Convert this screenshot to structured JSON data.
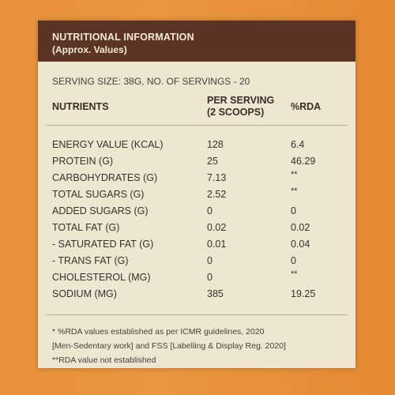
{
  "header": {
    "title": "NUTRITIONAL INFORMATION",
    "subtitle": "(Approx. Values)"
  },
  "serving_info": "SERVING SIZE: 38G, NO. OF SERVINGS - 20",
  "columns": {
    "nutrients": "NUTRIENTS",
    "per_serving_line1": "PER SERVING",
    "per_serving_line2": "(2 SCOOPS)",
    "rda": "%RDA"
  },
  "rows": [
    {
      "name": "ENERGY VALUE (KCAL)",
      "per_serving": "128",
      "rda": "6.4"
    },
    {
      "name": "PROTEIN (G)",
      "per_serving": "25",
      "rda": "46.29"
    },
    {
      "name": "CARBOHYDRATES (G)",
      "per_serving": "7.13",
      "rda": "**"
    },
    {
      "name": "TOTAL SUGARS (G)",
      "per_serving": "2.52",
      "rda": "**"
    },
    {
      "name": "ADDED SUGARS (G)",
      "per_serving": "0",
      "rda": "0"
    },
    {
      "name": "TOTAL FAT (G)",
      "per_serving": "0.02",
      "rda": "0.02"
    },
    {
      "name": "- SATURATED FAT (G)",
      "per_serving": "0.01",
      "rda": "0.04"
    },
    {
      "name": "- TRANS FAT (G)",
      "per_serving": "0",
      "rda": "0"
    },
    {
      "name": "CHOLESTEROL (MG)",
      "per_serving": "0",
      "rda": "**"
    },
    {
      "name": "SODIUM (MG)",
      "per_serving": "385",
      "rda": "19.25"
    }
  ],
  "footnotes": {
    "line1": "* %RDA values established as per ICMR guidelines, 2020",
    "line2": "[Men-Sedentary work] and FSS [Labelling & Display Reg. 2020]",
    "line3": "**RDA value not established"
  }
}
